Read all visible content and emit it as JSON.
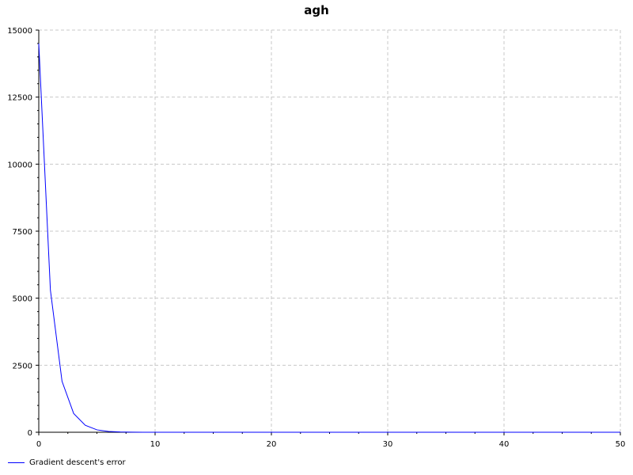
{
  "chart_data": {
    "type": "line",
    "title": "agh",
    "xlabel": "",
    "ylabel": "",
    "xlim": [
      0,
      50
    ],
    "ylim": [
      0,
      15000
    ],
    "x_ticks": [
      "0",
      "10",
      "20",
      "30",
      "40",
      "50"
    ],
    "y_ticks": [
      "0",
      "2500",
      "5000",
      "7500",
      "10000",
      "12500",
      "15000"
    ],
    "grid": true,
    "legend_position": "bottom-left",
    "series": [
      {
        "name": "Gradient descent's error",
        "color": "#0000ff",
        "x": [
          0,
          1,
          2,
          3,
          4,
          5,
          6,
          7,
          8,
          9,
          10,
          15,
          20,
          25,
          30,
          35,
          40,
          45,
          50
        ],
        "y": [
          14500,
          5300,
          1900,
          700,
          260,
          90,
          30,
          10,
          3,
          1,
          0,
          0,
          0,
          0,
          0,
          0,
          0,
          0,
          0
        ]
      }
    ]
  }
}
